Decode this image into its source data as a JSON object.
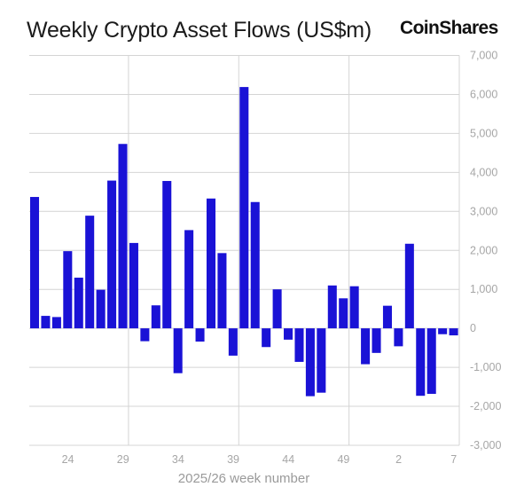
{
  "header": {
    "title": "Weekly Crypto Asset Flows (US$m)",
    "brand": "CoinShares"
  },
  "colors": {
    "bar": "#1a12d6",
    "grid": "#d4d4d4",
    "tick_text": "#a6a6a6"
  },
  "chart_data": {
    "type": "bar",
    "title": "Weekly Crypto Asset Flows (US$m)",
    "xlabel": "2025/26 week number",
    "ylabel": "",
    "ylim": [
      -3000,
      7000
    ],
    "yticks": [
      7000,
      6000,
      5000,
      4000,
      3000,
      2000,
      1000,
      0,
      -1000,
      -2000,
      -3000
    ],
    "ytick_labels": [
      "7,000",
      "6,000",
      "5,000",
      "4,000",
      "3,000",
      "2,000",
      "1,000",
      "0",
      "-1,000",
      "-2,000",
      "-3,000"
    ],
    "y_axis_position": "right",
    "xtick_labels": [
      "24",
      "29",
      "34",
      "39",
      "44",
      "49",
      "2",
      "7"
    ],
    "grid": true,
    "legend": null,
    "categories": [
      "21",
      "22",
      "23",
      "24",
      "25",
      "26",
      "27",
      "28",
      "29",
      "30",
      "31",
      "32",
      "33",
      "34",
      "35",
      "36",
      "37",
      "38",
      "39",
      "40",
      "41",
      "42",
      "43",
      "44",
      "45",
      "46",
      "47",
      "48",
      "49",
      "50",
      "51",
      "52",
      "1",
      "2",
      "3",
      "4",
      "5",
      "6",
      "7"
    ],
    "values": [
      3370,
      320,
      290,
      1980,
      1300,
      2890,
      990,
      3790,
      4730,
      2190,
      -330,
      590,
      3780,
      -1150,
      2520,
      -340,
      3330,
      1930,
      -700,
      6190,
      3240,
      -480,
      1000,
      -290,
      -860,
      -1740,
      -1650,
      1100,
      770,
      1080,
      -920,
      -630,
      580,
      -460,
      2170,
      -1730,
      -1680,
      -150,
      -180
    ]
  }
}
